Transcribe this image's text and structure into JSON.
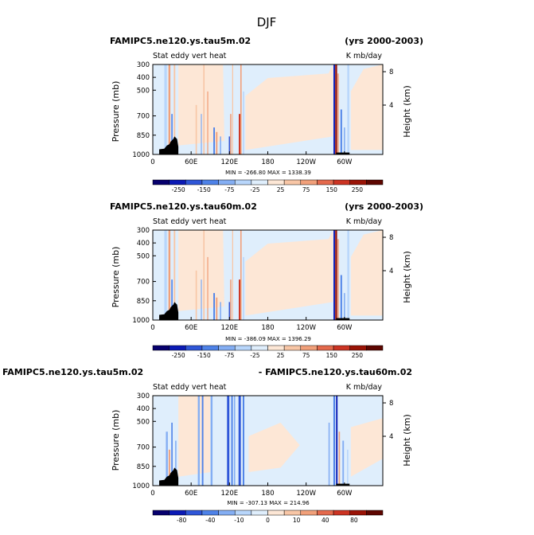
{
  "title": "DJF",
  "colors": {
    "frame": "#000000",
    "land": "#000000",
    "background_near_zero": "#dfeefc",
    "warm_neutral": "#fde7d6"
  },
  "chart_data": [
    {
      "type": "heatmap",
      "title_left": "FAMIPC5.ne120.ys.tau5m.02",
      "title_right": "(yrs 2000-2003)",
      "field": "Stat eddy vert heat",
      "units": "K mb/day",
      "stats": "MIN = -266.80   MAX = 1338.39",
      "min": -266.8,
      "max": 1338.39,
      "xlabel": "",
      "ylabel_left": "Pressure (mb)",
      "ylabel_right": "Height (km)",
      "x_ticks": [
        "0",
        "60E",
        "120E",
        "180",
        "120W",
        "60W"
      ],
      "y_ticks": [
        "300",
        "400",
        "500",
        "700",
        "850",
        "1000"
      ],
      "y2_ticks": [
        "8",
        "4"
      ],
      "colorbar_labels": [
        "-250",
        "-150",
        "-75",
        "-25",
        "25",
        "75",
        "150",
        "250"
      ],
      "colorbar_colors": [
        "#07006e",
        "#0b1ab5",
        "#2f56d8",
        "#4e82e8",
        "#84aef3",
        "#b8d6fb",
        "#dfeefc",
        "#fde7d6",
        "#f8c6a6",
        "#f1a07a",
        "#e4694c",
        "#cc3423",
        "#9a1306",
        "#5e0600"
      ]
    },
    {
      "type": "heatmap",
      "title_left": "FAMIPC5.ne120.ys.tau60m.02",
      "title_right": "(yrs 2000-2003)",
      "field": "Stat eddy vert heat",
      "units": "K mb/day",
      "stats": "MIN = -386.09   MAX = 1396.29",
      "min": -386.09,
      "max": 1396.29,
      "xlabel": "",
      "ylabel_left": "Pressure (mb)",
      "ylabel_right": "Height (km)",
      "x_ticks": [
        "0",
        "60E",
        "120E",
        "180",
        "120W",
        "60W"
      ],
      "y_ticks": [
        "300",
        "400",
        "500",
        "700",
        "850",
        "1000"
      ],
      "y2_ticks": [
        "8",
        "4"
      ],
      "colorbar_labels": [
        "-250",
        "-150",
        "-75",
        "-25",
        "25",
        "75",
        "150",
        "250"
      ],
      "colorbar_colors": [
        "#07006e",
        "#0b1ab5",
        "#2f56d8",
        "#4e82e8",
        "#84aef3",
        "#b8d6fb",
        "#dfeefc",
        "#fde7d6",
        "#f8c6a6",
        "#f1a07a",
        "#e4694c",
        "#cc3423",
        "#9a1306",
        "#5e0600"
      ]
    },
    {
      "type": "heatmap",
      "title_left": "FAMIPC5.ne120.ys.tau5m.02",
      "title_right": "- FAMIPC5.ne120.ys.tau60m.02",
      "field": "Stat eddy vert heat",
      "units": "K mb/day",
      "stats": "MIN = -307.13   MAX = 214.96",
      "min": -307.13,
      "max": 214.96,
      "xlabel": "",
      "ylabel_left": "Pressure (mb)",
      "ylabel_right": "Height (km)",
      "x_ticks": [
        "0",
        "60E",
        "120E",
        "180",
        "120W",
        "60W"
      ],
      "y_ticks": [
        "300",
        "400",
        "500",
        "700",
        "850",
        "1000"
      ],
      "y2_ticks": [
        "8",
        "4"
      ],
      "colorbar_labels": [
        "-80",
        "-40",
        "-10",
        "0",
        "10",
        "40",
        "80"
      ],
      "colorbar_colors": [
        "#07006e",
        "#0b1ab5",
        "#2f56d8",
        "#4e82e8",
        "#84aef3",
        "#b8d6fb",
        "#dfeefc",
        "#fde7d6",
        "#f8c6a6",
        "#f1a07a",
        "#e4694c",
        "#cc3423",
        "#9a1306",
        "#5e0600"
      ]
    }
  ]
}
